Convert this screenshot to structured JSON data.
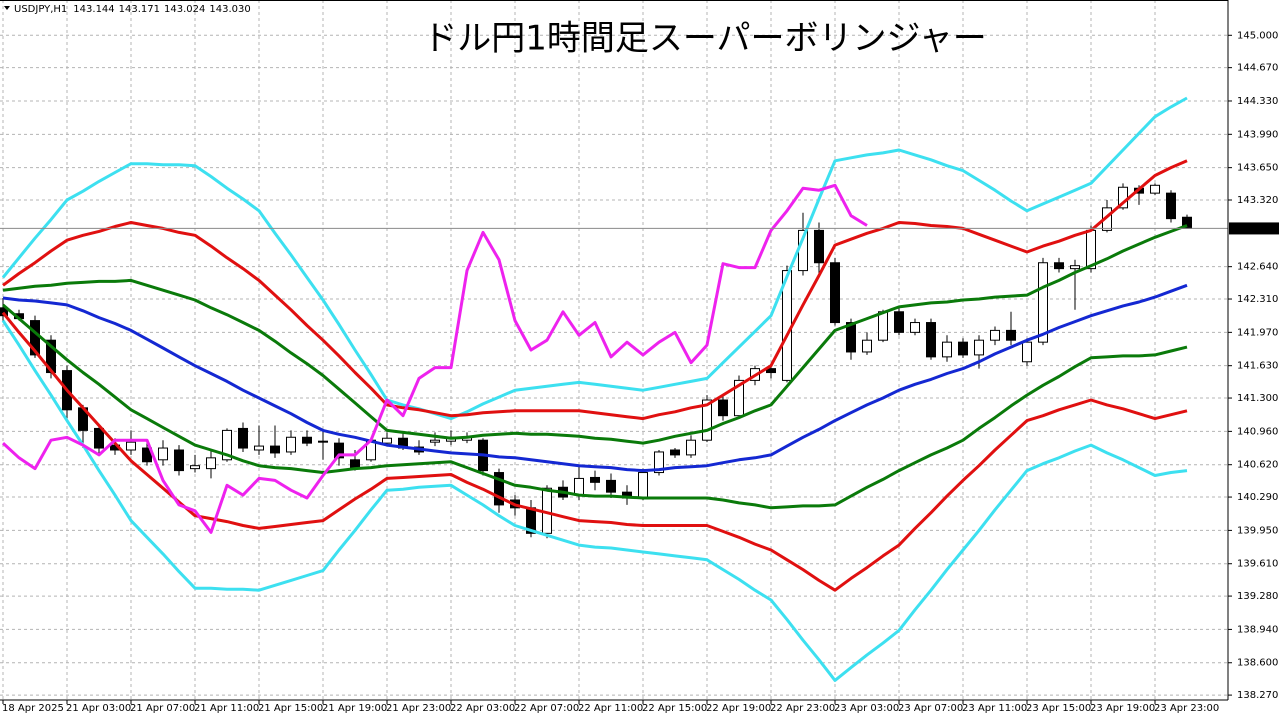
{
  "chart_data": {
    "type": "candlestick",
    "title": "ドル円1時間足スーパーボリンジャー",
    "symbol": "USDJPY,H1",
    "ohlc_labels": [
      "143.144",
      "143.171",
      "143.024",
      "143.030"
    ],
    "categories": [
      "18 Apr 2025",
      null,
      null,
      null,
      "21 Apr 03:00",
      null,
      null,
      null,
      "21 Apr 07:00",
      null,
      null,
      null,
      "21 Apr 11:00",
      null,
      null,
      null,
      "21 Apr 15:00",
      null,
      null,
      null,
      "21 Apr 19:00",
      null,
      null,
      null,
      "21 Apr 23:00",
      null,
      null,
      null,
      "22 Apr 03:00",
      null,
      null,
      null,
      "22 Apr 07:00",
      null,
      null,
      null,
      "22 Apr 11:00",
      null,
      null,
      null,
      "22 Apr 15:00",
      null,
      null,
      null,
      "22 Apr 19:00",
      null,
      null,
      null,
      "22 Apr 23:00",
      null,
      null,
      null,
      "23 Apr 03:00",
      null,
      null,
      null,
      "23 Apr 07:00",
      null,
      null,
      null,
      "23 Apr 11:00",
      null,
      null,
      null,
      "23 Apr 15:00",
      null,
      null,
      null,
      "23 Apr 19:00",
      null,
      null,
      null,
      "23 Apr 23:00",
      null,
      null
    ],
    "open": [
      142.22,
      142.16,
      142.09,
      141.89,
      141.58,
      141.2,
      140.99,
      140.82,
      140.77,
      140.79,
      140.67,
      140.77,
      140.58,
      140.58,
      140.67,
      140.99,
      140.77,
      140.81,
      140.75,
      140.9,
      140.85,
      140.84,
      140.67,
      140.67,
      140.84,
      140.89,
      140.8,
      140.85,
      140.86,
      140.87,
      140.87,
      140.54,
      140.26,
      140.18,
      139.92,
      140.39,
      140.31,
      140.49,
      140.46,
      140.34,
      140.28,
      140.54,
      140.77,
      140.72,
      140.87,
      141.28,
      141.12,
      141.48,
      141.6,
      141.48,
      142.6,
      143.01,
      142.68,
      142.07,
      141.77,
      141.89,
      142.18,
      141.97,
      142.07,
      141.72,
      141.87,
      141.74,
      141.89,
      141.99,
      141.67,
      141.87,
      142.68,
      142.62,
      142.62,
      143.01,
      143.24,
      143.44,
      143.39,
      143.39,
      143.144
    ],
    "high": [
      142.32,
      142.2,
      142.14,
      141.94,
      141.63,
      141.23,
      141.02,
      140.89,
      140.97,
      140.87,
      140.87,
      140.82,
      140.72,
      140.77,
      140.99,
      141.05,
      141.02,
      141.02,
      140.97,
      140.97,
      140.97,
      140.89,
      140.77,
      140.9,
      140.95,
      140.95,
      140.87,
      140.95,
      140.97,
      140.95,
      140.89,
      140.58,
      140.31,
      140.26,
      140.41,
      140.46,
      140.61,
      140.56,
      140.53,
      140.41,
      140.58,
      140.77,
      140.79,
      140.92,
      141.33,
      141.33,
      141.53,
      141.63,
      141.65,
      142.65,
      143.19,
      143.09,
      142.73,
      142.11,
      141.97,
      142.2,
      142.22,
      142.11,
      142.11,
      141.94,
      141.91,
      141.94,
      142.03,
      142.18,
      141.91,
      142.73,
      142.73,
      142.71,
      143.06,
      143.32,
      143.49,
      143.47,
      143.49,
      143.42,
      143.171
    ],
    "low": [
      142.09,
      142.09,
      141.71,
      141.5,
      141.07,
      140.79,
      140.72,
      140.72,
      140.72,
      140.61,
      140.61,
      140.51,
      140.54,
      140.48,
      140.65,
      140.75,
      140.72,
      140.69,
      140.72,
      140.81,
      140.67,
      140.61,
      140.56,
      140.65,
      140.81,
      140.77,
      140.72,
      140.81,
      140.82,
      140.84,
      140.51,
      140.13,
      140.1,
      139.88,
      139.87,
      140.26,
      140.26,
      140.36,
      140.28,
      140.21,
      140.26,
      140.51,
      140.69,
      140.69,
      140.85,
      141.07,
      141.09,
      141.43,
      141.5,
      141.46,
      142.55,
      142.55,
      142.04,
      141.69,
      141.74,
      141.87,
      141.94,
      141.94,
      141.69,
      141.67,
      141.71,
      141.6,
      141.84,
      141.84,
      141.63,
      141.84,
      142.58,
      142.2,
      142.58,
      142.99,
      143.22,
      143.27,
      143.37,
      143.09,
      143.024
    ],
    "close": [
      142.14,
      142.11,
      141.74,
      141.56,
      141.18,
      140.97,
      140.79,
      140.77,
      140.85,
      140.65,
      140.79,
      140.56,
      140.61,
      140.69,
      140.97,
      140.79,
      140.81,
      140.74,
      140.9,
      140.84,
      140.86,
      140.69,
      140.58,
      140.87,
      140.89,
      140.79,
      140.75,
      140.87,
      140.9,
      140.9,
      140.56,
      140.21,
      140.18,
      139.92,
      140.38,
      140.29,
      140.48,
      140.44,
      140.34,
      140.28,
      140.54,
      140.75,
      140.72,
      140.87,
      141.28,
      141.12,
      141.48,
      141.6,
      141.56,
      142.6,
      143.01,
      142.68,
      142.07,
      141.77,
      141.89,
      142.18,
      141.97,
      142.07,
      141.72,
      141.87,
      141.74,
      141.89,
      141.99,
      141.89,
      141.87,
      142.68,
      142.62,
      142.65,
      143.01,
      143.24,
      143.45,
      143.39,
      143.47,
      143.13,
      143.03
    ],
    "up_color": "#ffffff",
    "down_color": "#000000",
    "series": [
      {
        "color": "#3de0f0",
        "values": [
          142.53,
          142.73,
          142.93,
          143.12,
          143.32,
          143.41,
          143.51,
          143.6,
          143.69,
          143.69,
          143.68,
          143.68,
          143.67,
          143.56,
          143.44,
          143.33,
          143.21,
          142.98,
          142.76,
          142.53,
          142.3,
          142.05,
          141.79,
          141.54,
          141.28,
          141.23,
          141.19,
          141.14,
          141.09,
          141.16,
          141.24,
          141.31,
          141.38,
          141.4,
          141.42,
          141.44,
          141.46,
          141.44,
          141.42,
          141.4,
          141.38,
          141.41,
          141.44,
          141.47,
          141.5,
          141.66,
          141.82,
          141.98,
          142.14,
          142.54,
          142.93,
          143.33,
          143.72,
          143.75,
          143.78,
          143.8,
          143.83,
          143.78,
          143.73,
          143.67,
          143.62,
          143.52,
          143.42,
          143.31,
          143.21,
          143.28,
          143.35,
          143.42,
          143.49,
          143.66,
          143.83,
          144.0,
          144.17,
          144.27,
          144.36
        ]
      },
      {
        "color": "#e01010",
        "values": [
          142.45,
          142.57,
          142.68,
          142.8,
          142.91,
          142.96,
          143.0,
          143.05,
          143.09,
          143.06,
          143.03,
          142.99,
          142.96,
          142.85,
          142.73,
          142.62,
          142.5,
          142.35,
          142.2,
          142.04,
          141.89,
          141.73,
          141.56,
          141.4,
          141.23,
          141.2,
          141.18,
          141.15,
          141.12,
          141.13,
          141.15,
          141.16,
          141.17,
          141.17,
          141.17,
          141.17,
          141.17,
          141.15,
          141.13,
          141.11,
          141.09,
          141.13,
          141.16,
          141.2,
          141.23,
          141.33,
          141.43,
          141.53,
          141.63,
          141.94,
          142.25,
          142.55,
          142.86,
          142.92,
          142.98,
          143.03,
          143.09,
          143.08,
          143.06,
          143.05,
          143.03,
          142.97,
          142.91,
          142.85,
          142.79,
          142.85,
          142.9,
          142.96,
          143.01,
          143.15,
          143.29,
          143.43,
          143.57,
          143.65,
          143.72
        ]
      },
      {
        "color": "#0a7a0a",
        "values": [
          142.4,
          142.42,
          142.44,
          142.45,
          142.47,
          142.48,
          142.49,
          142.49,
          142.5,
          142.45,
          142.4,
          142.35,
          142.3,
          142.22,
          142.15,
          142.07,
          141.99,
          141.88,
          141.76,
          141.65,
          141.53,
          141.39,
          141.25,
          141.11,
          140.97,
          140.95,
          140.93,
          140.91,
          140.89,
          140.9,
          140.92,
          140.93,
          140.94,
          140.93,
          140.93,
          140.92,
          140.91,
          140.89,
          140.88,
          140.86,
          140.84,
          140.87,
          140.91,
          140.94,
          140.97,
          141.04,
          141.1,
          141.17,
          141.23,
          141.42,
          141.61,
          141.8,
          141.99,
          142.05,
          142.11,
          142.17,
          142.23,
          142.25,
          142.27,
          142.28,
          142.3,
          142.31,
          142.33,
          142.34,
          142.35,
          142.43,
          142.5,
          142.58,
          142.65,
          142.72,
          142.8,
          142.87,
          142.94,
          143.0,
          143.06
        ]
      },
      {
        "color": "#1428d2",
        "values": [
          142.32,
          142.3,
          142.29,
          142.27,
          142.25,
          142.19,
          142.12,
          142.06,
          141.99,
          141.9,
          141.81,
          141.72,
          141.63,
          141.55,
          141.47,
          141.38,
          141.3,
          141.22,
          141.14,
          141.05,
          140.97,
          140.93,
          140.9,
          140.86,
          140.82,
          140.8,
          140.78,
          140.76,
          140.74,
          140.73,
          140.72,
          140.7,
          140.69,
          140.67,
          140.65,
          140.63,
          140.61,
          140.6,
          140.59,
          140.57,
          140.56,
          140.57,
          140.59,
          140.6,
          140.61,
          140.64,
          140.67,
          140.69,
          140.72,
          140.81,
          140.9,
          140.98,
          141.07,
          141.15,
          141.23,
          141.3,
          141.38,
          141.44,
          141.49,
          141.55,
          141.6,
          141.67,
          141.75,
          141.82,
          141.89,
          141.95,
          142.02,
          142.08,
          142.14,
          142.19,
          142.24,
          142.28,
          142.33,
          142.39,
          142.45
        ]
      },
      {
        "color": "#0a7a0a",
        "values": [
          142.25,
          142.11,
          141.97,
          141.83,
          141.69,
          141.56,
          141.44,
          141.31,
          141.18,
          141.09,
          141.0,
          140.91,
          140.82,
          140.77,
          140.72,
          140.66,
          140.61,
          140.59,
          140.58,
          140.56,
          140.54,
          140.56,
          140.58,
          140.59,
          140.61,
          140.62,
          140.63,
          140.64,
          140.65,
          140.59,
          140.53,
          140.47,
          140.41,
          140.39,
          140.36,
          140.34,
          140.31,
          140.3,
          140.3,
          140.29,
          140.28,
          140.28,
          140.28,
          140.28,
          140.28,
          140.26,
          140.23,
          140.21,
          140.18,
          140.19,
          140.2,
          140.2,
          140.21,
          140.3,
          140.39,
          140.47,
          140.56,
          140.64,
          140.72,
          140.79,
          140.87,
          140.99,
          141.1,
          141.22,
          141.33,
          141.43,
          141.52,
          141.62,
          141.71,
          141.72,
          141.73,
          141.73,
          141.74,
          141.78,
          141.82
        ]
      },
      {
        "color": "#e01010",
        "values": [
          142.17,
          141.97,
          141.78,
          141.58,
          141.38,
          141.2,
          141.02,
          140.84,
          140.66,
          140.52,
          140.38,
          140.24,
          140.1,
          140.07,
          140.04,
          140.0,
          139.97,
          139.99,
          140.01,
          140.03,
          140.05,
          140.16,
          140.27,
          140.37,
          140.48,
          140.49,
          140.5,
          140.51,
          140.52,
          140.44,
          140.37,
          140.29,
          140.21,
          140.17,
          140.13,
          140.09,
          140.05,
          140.04,
          140.03,
          140.01,
          140.0,
          140.0,
          140.0,
          140.0,
          140.0,
          139.94,
          139.88,
          139.81,
          139.75,
          139.65,
          139.55,
          139.44,
          139.34,
          139.46,
          139.57,
          139.69,
          139.8,
          139.97,
          140.13,
          140.3,
          140.46,
          140.61,
          140.77,
          140.92,
          141.07,
          141.12,
          141.18,
          141.23,
          141.28,
          141.23,
          141.19,
          141.14,
          141.09,
          141.13,
          141.17
        ]
      },
      {
        "color": "#3de0f0",
        "values": [
          142.09,
          141.84,
          141.58,
          141.33,
          141.07,
          140.82,
          140.56,
          140.31,
          140.05,
          139.88,
          139.71,
          139.53,
          139.36,
          139.36,
          139.35,
          139.35,
          139.34,
          139.39,
          139.44,
          139.49,
          139.54,
          139.75,
          139.95,
          140.16,
          140.36,
          140.37,
          140.39,
          140.4,
          140.41,
          140.31,
          140.21,
          140.1,
          140.0,
          139.95,
          139.9,
          139.85,
          139.8,
          139.78,
          139.77,
          139.75,
          139.73,
          139.71,
          139.69,
          139.67,
          139.65,
          139.55,
          139.45,
          139.34,
          139.24,
          139.04,
          138.83,
          138.63,
          138.42,
          138.55,
          138.68,
          138.8,
          138.93,
          139.14,
          139.34,
          139.55,
          139.75,
          139.95,
          140.16,
          140.36,
          140.56,
          140.63,
          140.69,
          140.76,
          140.82,
          140.74,
          140.67,
          140.59,
          140.51,
          140.54,
          140.56
        ]
      },
      {
        "color": "#ee22ee",
        "values": [
          140.84,
          140.69,
          140.58,
          140.87,
          140.9,
          140.82,
          140.72,
          140.87,
          140.87,
          140.87,
          140.46,
          140.21,
          140.15,
          139.93,
          140.41,
          140.31,
          140.48,
          140.46,
          140.36,
          140.28,
          140.51,
          140.72,
          140.72,
          140.87,
          141.28,
          141.12,
          141.5,
          141.61,
          141.61,
          142.6,
          142.99,
          142.71,
          142.09,
          141.79,
          141.89,
          142.18,
          141.94,
          142.07,
          141.72,
          141.87,
          141.74,
          141.87,
          141.97,
          141.66,
          141.84,
          142.67,
          142.63,
          142.63,
          143.01,
          143.21,
          143.44,
          143.42,
          143.47,
          143.16,
          143.06,
          null,
          null,
          null,
          null,
          null,
          null,
          null,
          null,
          null,
          null,
          null,
          null,
          null,
          null,
          null,
          null,
          null,
          null,
          null,
          null
        ]
      }
    ],
    "ylim": [
      138.22,
      145.36
    ],
    "yticks": [
      {
        "value": 145,
        "label": "145.000"
      },
      {
        "value": 144.67,
        "label": "144.670"
      },
      {
        "value": 144.33,
        "label": "144.330"
      },
      {
        "value": 143.99,
        "label": "143.990"
      },
      {
        "value": 143.65,
        "label": "143.650"
      },
      {
        "value": 143.32,
        "label": "143.320"
      },
      {
        "value": 142.64,
        "label": "142.640"
      },
      {
        "value": 142.31,
        "label": "142.310"
      },
      {
        "value": 141.97,
        "label": "141.970"
      },
      {
        "value": 141.63,
        "label": "141.630"
      },
      {
        "value": 141.3,
        "label": "141.300"
      },
      {
        "value": 140.96,
        "label": "140.960"
      },
      {
        "value": 140.62,
        "label": "140.620"
      },
      {
        "value": 140.29,
        "label": "140.290"
      },
      {
        "value": 139.95,
        "label": "139.950"
      },
      {
        "value": 139.61,
        "label": "139.610"
      },
      {
        "value": 139.28,
        "label": "139.280"
      },
      {
        "value": 138.94,
        "label": "138.940"
      },
      {
        "value": 138.6,
        "label": "138.600"
      },
      {
        "value": 138.27,
        "label": "138.270"
      }
    ],
    "current_price": {
      "value": 143.03,
      "label": "143.030"
    },
    "grid": true
  }
}
